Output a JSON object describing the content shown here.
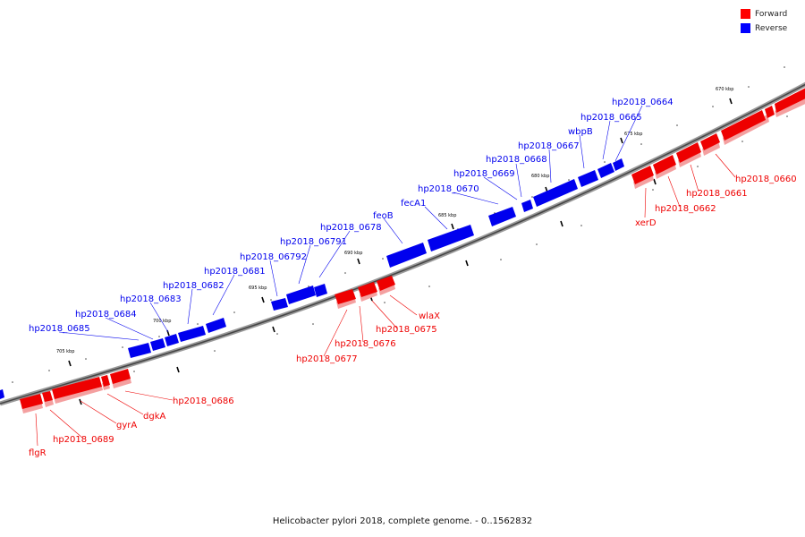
{
  "legend": {
    "items": [
      {
        "label": "Forward",
        "color": "#ff0000"
      },
      {
        "label": "Reverse",
        "color": "#0000ff"
      }
    ]
  },
  "caption": "Helicobacter pylori 2018, complete genome. - 0..1562832",
  "ticks": [
    "670 kbp",
    "675 kbp",
    "680 kbp",
    "685 kbp",
    "690 kbp",
    "695 kbp",
    "700 kbp",
    "705 kbp"
  ],
  "genes": [
    {
      "label": "hp2018_0664",
      "strand": "reverse"
    },
    {
      "label": "hp2018_0665",
      "strand": "reverse"
    },
    {
      "label": "wbpB",
      "strand": "reverse"
    },
    {
      "label": "hp2018_0667",
      "strand": "reverse"
    },
    {
      "label": "hp2018_0668",
      "strand": "reverse"
    },
    {
      "label": "hp2018_0669",
      "strand": "reverse"
    },
    {
      "label": "hp2018_0670",
      "strand": "reverse"
    },
    {
      "label": "fecA1",
      "strand": "reverse"
    },
    {
      "label": "feoB",
      "strand": "reverse"
    },
    {
      "label": "hp2018_0678",
      "strand": "reverse"
    },
    {
      "label": "hp2018_06791",
      "strand": "reverse"
    },
    {
      "label": "hp2018_06792",
      "strand": "reverse"
    },
    {
      "label": "hp2018_0681",
      "strand": "reverse"
    },
    {
      "label": "hp2018_0682",
      "strand": "reverse"
    },
    {
      "label": "hp2018_0683",
      "strand": "reverse"
    },
    {
      "label": "hp2018_0684",
      "strand": "reverse"
    },
    {
      "label": "hp2018_0685",
      "strand": "reverse"
    },
    {
      "label": "hp2018_0660",
      "strand": "forward"
    },
    {
      "label": "hp2018_0661",
      "strand": "forward"
    },
    {
      "label": "hp2018_0662",
      "strand": "forward"
    },
    {
      "label": "xerD",
      "strand": "forward"
    },
    {
      "label": "wlaX",
      "strand": "forward"
    },
    {
      "label": "hp2018_0675",
      "strand": "forward"
    },
    {
      "label": "hp2018_0676",
      "strand": "forward"
    },
    {
      "label": "hp2018_0677",
      "strand": "forward"
    },
    {
      "label": "hp2018_0686",
      "strand": "forward"
    },
    {
      "label": "dgkA",
      "strand": "forward"
    },
    {
      "label": "gyrA",
      "strand": "forward"
    },
    {
      "label": "hp2018_0689",
      "strand": "forward"
    },
    {
      "label": "flgR",
      "strand": "forward"
    }
  ]
}
